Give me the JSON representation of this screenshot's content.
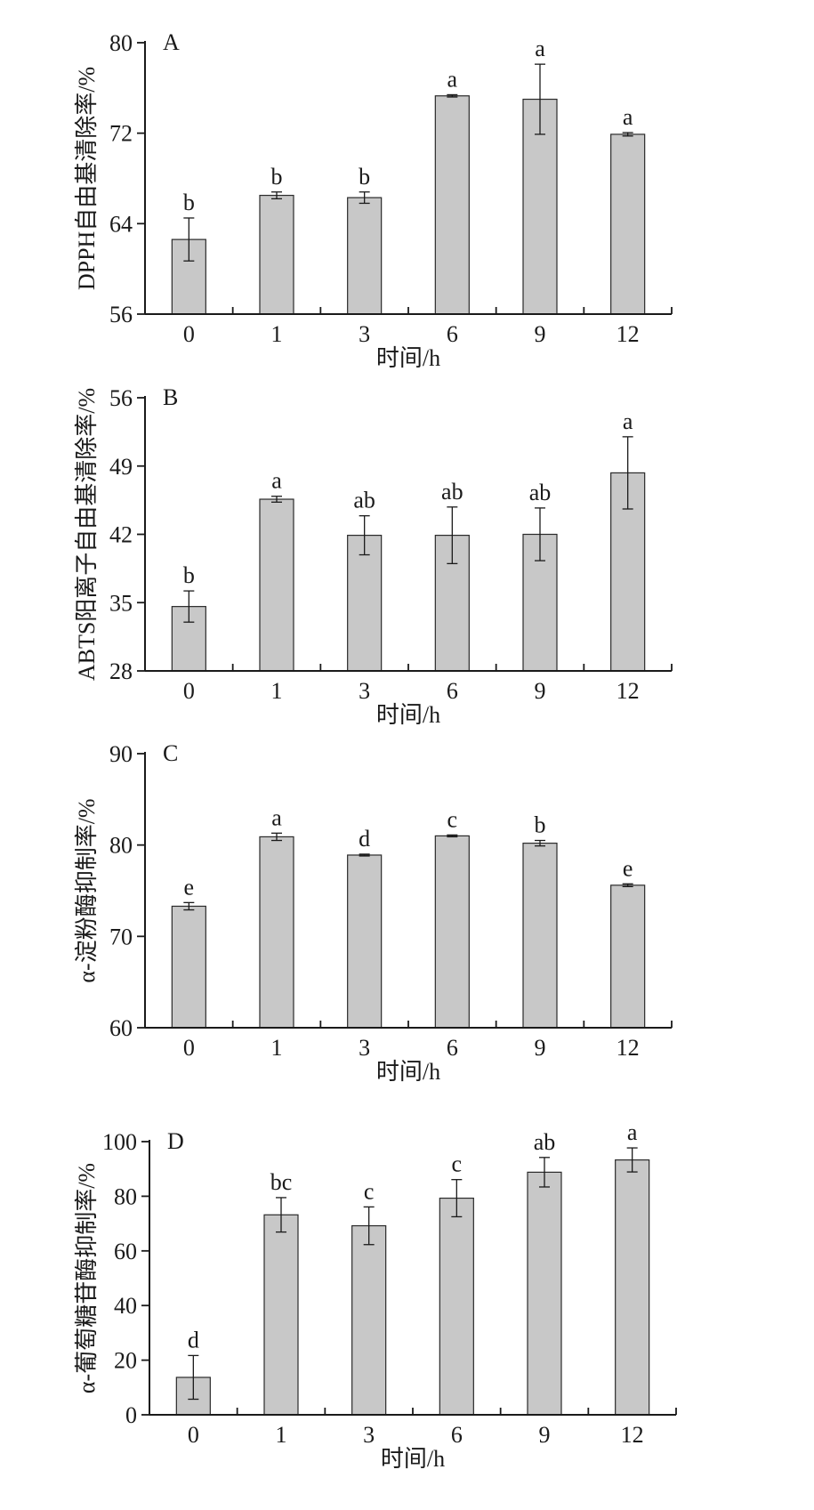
{
  "chart_data": [
    {
      "type": "bar",
      "panel_label": "A",
      "categories": [
        "0",
        "1",
        "3",
        "6",
        "9",
        "12"
      ],
      "values": [
        62.6,
        66.5,
        66.3,
        75.3,
        75.0,
        71.9
      ],
      "errors": [
        1.9,
        0.3,
        0.5,
        0.1,
        3.1,
        0.15
      ],
      "significance": [
        "b",
        "b",
        "b",
        "a",
        "a",
        "a"
      ],
      "xlabel": "时间/h",
      "ylabel": "DPPH自由基清除率/%",
      "ylim": [
        56,
        80
      ],
      "yticks": [
        56,
        64,
        72,
        80
      ]
    },
    {
      "type": "bar",
      "panel_label": "B",
      "categories": [
        "0",
        "1",
        "3",
        "6",
        "9",
        "12"
      ],
      "values": [
        34.6,
        45.6,
        41.9,
        41.9,
        42.0,
        48.3
      ],
      "errors": [
        1.6,
        0.3,
        2.0,
        2.9,
        2.7,
        3.7
      ],
      "significance": [
        "b",
        "a",
        "ab",
        "ab",
        "ab",
        "a"
      ],
      "xlabel": "时间/h",
      "ylabel": "ABTS阳离子自由基清除率/%",
      "ylim": [
        28,
        56
      ],
      "yticks": [
        28,
        35,
        42,
        49,
        56
      ]
    },
    {
      "type": "bar",
      "panel_label": "C",
      "categories": [
        "0",
        "1",
        "3",
        "6",
        "9",
        "12"
      ],
      "values": [
        73.3,
        80.9,
        78.9,
        81.0,
        80.2,
        75.6
      ],
      "errors": [
        0.4,
        0.4,
        0.1,
        0.1,
        0.3,
        0.15
      ],
      "significance": [
        "e",
        "a",
        "d",
        "c",
        "b",
        "e"
      ],
      "xlabel": "时间/h",
      "ylabel": "α-淀粉酶抑制率/%",
      "ylim": [
        60,
        90
      ],
      "yticks": [
        60,
        70,
        80,
        90
      ]
    },
    {
      "type": "bar",
      "panel_label": "D",
      "categories": [
        "0",
        "1",
        "3",
        "6",
        "9",
        "12"
      ],
      "values": [
        13.7,
        73.2,
        69.2,
        79.3,
        88.8,
        93.3
      ],
      "errors": [
        8.0,
        6.3,
        6.9,
        6.8,
        5.4,
        4.4
      ],
      "significance": [
        "d",
        "bc",
        "c",
        "c",
        "ab",
        "a"
      ],
      "xlabel": "时间/h",
      "ylabel": "α-葡萄糖苷酶抑制率/%",
      "ylim": [
        0,
        100
      ],
      "yticks": [
        0,
        20,
        40,
        60,
        80,
        100
      ]
    }
  ]
}
